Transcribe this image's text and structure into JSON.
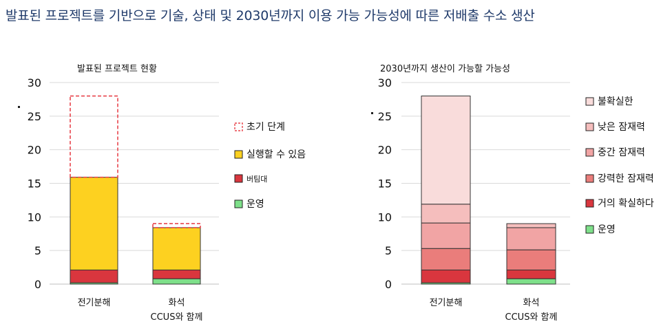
{
  "header": {
    "title": "발표된 프로젝트를 기반으로 기술, 상태 및 2030년까지 이용 가능 가능성에 따른 저배출 수소 생산"
  },
  "colors": {
    "operating": "#7ee08a",
    "under_construction": "#d9363e",
    "feasible": "#fdd120",
    "early_stage_dash": "#e8434b",
    "bar_outline": "#333333",
    "grid": "#d9d9d9",
    "uncertain": "#f9dcdb",
    "low_potential": "#f5bebd",
    "medium_potential": "#f1a4a4",
    "strong_potential": "#ea7d7b",
    "almost_certain": "#d9363e"
  },
  "chart_data": [
    {
      "type": "bar",
      "stacked": true,
      "title": "발표된 프로젝트 현황",
      "categories": [
        [
          "전기분해"
        ],
        [
          "화석",
          "CCUS와 함께"
        ]
      ],
      "ylim": [
        0,
        30
      ],
      "yticks": [
        "0",
        "5",
        "10",
        "15",
        "20",
        "25",
        "30"
      ],
      "grid": true,
      "legend_position": "right",
      "series": [
        {
          "name": "운영",
          "values": [
            0.2,
            0.8
          ],
          "color": "#7ee08a"
        },
        {
          "name": "버팀대",
          "values": [
            1.9,
            1.3
          ],
          "color": "#d9363e"
        },
        {
          "name": "실행할 수 있음",
          "values": [
            13.8,
            6.3
          ],
          "color": "#fdd120"
        },
        {
          "name": "초기 단계",
          "values": [
            12.1,
            0.6
          ],
          "color": "#e8434b",
          "style": "dashed-outline"
        }
      ],
      "legend": [
        "초기 단계",
        "실행할 수 있음",
        "버팀대",
        "운영"
      ]
    },
    {
      "type": "bar",
      "stacked": true,
      "title": "2030년까지 생산이 가능할 가능성",
      "categories": [
        [
          "전기분해"
        ],
        [
          "화석",
          "CCUS와 함께"
        ]
      ],
      "ylim": [
        0,
        30
      ],
      "yticks": [
        "0",
        "5",
        "10",
        "15",
        "20",
        "25",
        "30"
      ],
      "grid": true,
      "legend_position": "right",
      "series": [
        {
          "name": "운영",
          "values": [
            0.2,
            0.8
          ],
          "color": "#7ee08a"
        },
        {
          "name": "거의 확실하다",
          "values": [
            1.9,
            1.3
          ],
          "color": "#d9363e"
        },
        {
          "name": "강력한 잠재력",
          "values": [
            3.2,
            3.0
          ],
          "color": "#ea7d7b"
        },
        {
          "name": "중간 잠재력",
          "values": [
            3.8,
            3.3
          ],
          "color": "#f1a4a4"
        },
        {
          "name": "낮은 잠재력",
          "values": [
            2.8,
            0.6
          ],
          "color": "#f5bebd"
        },
        {
          "name": "불확실한",
          "values": [
            16.1,
            0.0
          ],
          "color": "#f9dcdb"
        }
      ],
      "legend": [
        "불확실한",
        "낮은 잠재력",
        "중간 잠재력",
        "강력한 잠재력",
        "거의 확실하다",
        "운영"
      ]
    }
  ]
}
